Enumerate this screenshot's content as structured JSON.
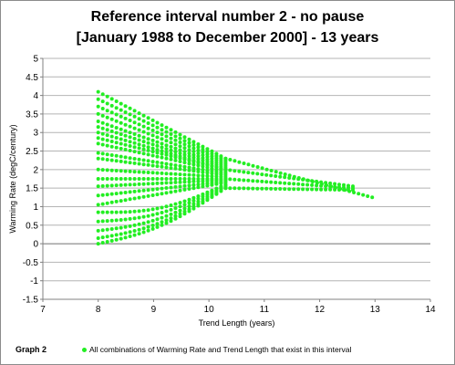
{
  "chart_data": {
    "type": "scatter",
    "title": "Reference interval number  2  -  no pause",
    "subtitle": "[January 1988 to December 2000] - 13 years",
    "xlabel": "Trend Length  (years)",
    "ylabel": "Warming Rate (degC/century)",
    "xlim": [
      7,
      14
    ],
    "ylim": [
      -1.5,
      5
    ],
    "x_ticks": [
      "7",
      "8",
      "9",
      "10",
      "11",
      "12",
      "13",
      "14"
    ],
    "y_ticks": [
      "-1.5",
      "-1",
      "-0.5",
      "0",
      "0.5",
      "1",
      "1.5",
      "2",
      "2.5",
      "3",
      "3.5",
      "4",
      "4.5",
      "5"
    ],
    "grid": "horizontal",
    "legend_position": "bottom",
    "marker_color": "#22ee22",
    "series": [
      {
        "name": "All combinations of Warming Rate and Trend Length that exist in this interval",
        "bands": [
          {
            "x": [
              8.0,
              10.3
            ],
            "y": [
              4.1,
              2.3
            ]
          },
          {
            "x": [
              8.0,
              10.3
            ],
            "y": [
              3.9,
              2.25
            ]
          },
          {
            "x": [
              8.0,
              10.3
            ],
            "y": [
              3.7,
              2.2
            ]
          },
          {
            "x": [
              8.0,
              10.3
            ],
            "y": [
              3.5,
              2.15
            ]
          },
          {
            "x": [
              8.0,
              10.3
            ],
            "y": [
              3.3,
              2.1
            ]
          },
          {
            "x": [
              8.0,
              10.3
            ],
            "y": [
              3.15,
              2.05
            ]
          },
          {
            "x": [
              8.0,
              10.3
            ],
            "y": [
              3.0,
              2.0
            ]
          },
          {
            "x": [
              8.0,
              10.3
            ],
            "y": [
              2.85,
              2.0
            ]
          },
          {
            "x": [
              8.0,
              10.3
            ],
            "y": [
              2.7,
              1.95
            ]
          },
          {
            "x": [
              8.0,
              10.3
            ],
            "y": [
              2.45,
              1.9
            ]
          },
          {
            "x": [
              8.0,
              10.3
            ],
            "y": [
              2.3,
              1.85
            ]
          },
          {
            "x": [
              8.0,
              10.3
            ],
            "y": [
              2.0,
              1.8
            ]
          },
          {
            "x": [
              8.0,
              10.3
            ],
            "y": [
              1.75,
              1.75
            ]
          },
          {
            "x": [
              8.0,
              10.3
            ],
            "y": [
              1.55,
              1.72
            ]
          },
          {
            "x": [
              8.0,
              10.3
            ],
            "y": [
              1.3,
              1.68
            ]
          },
          {
            "x": [
              8.0,
              10.3
            ],
            "y": [
              1.05,
              1.65
            ]
          },
          {
            "x": [
              8.0,
              10.3
            ],
            "y": [
              0.85,
              1.6
            ]
          },
          {
            "x": [
              8.0,
              10.3
            ],
            "y": [
              0.6,
              1.58
            ]
          },
          {
            "x": [
              8.0,
              10.3
            ],
            "y": [
              0.35,
              1.55
            ]
          },
          {
            "x": [
              8.0,
              10.3
            ],
            "y": [
              0.15,
              1.52
            ]
          },
          {
            "x": [
              8.0,
              10.3
            ],
            "y": [
              0.0,
              1.5
            ]
          },
          {
            "x": [
              10.3,
              12.95
            ],
            "y": [
              2.3,
              1.25
            ]
          },
          {
            "x": [
              10.3,
              12.6
            ],
            "y": [
              2.0,
              1.55
            ]
          },
          {
            "x": [
              10.3,
              12.6
            ],
            "y": [
              1.75,
              1.5
            ]
          },
          {
            "x": [
              10.3,
              12.6
            ],
            "y": [
              1.5,
              1.45
            ]
          }
        ]
      }
    ]
  },
  "footer": {
    "graph_label": "Graph 2",
    "legend_text": "All combinations of Warming Rate and Trend Length that exist in this interval"
  }
}
